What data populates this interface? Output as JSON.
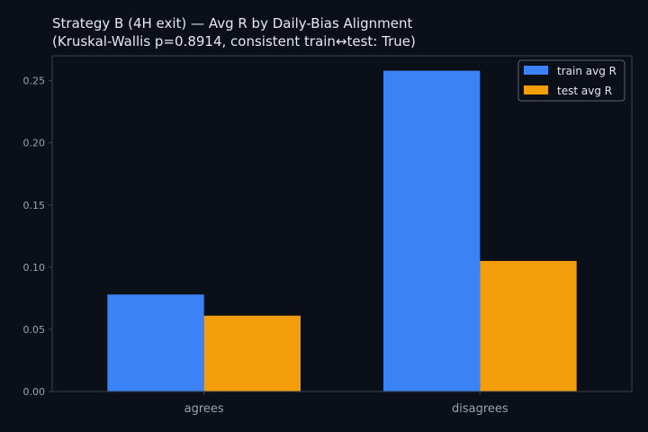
{
  "chart_data": {
    "type": "bar",
    "title_line1": "Strategy B (4H exit) — Avg R by Daily-Bias Alignment",
    "title_line2": "(Kruskal-Wallis p=0.8914, consistent train↔test: True)",
    "categories": [
      "agrees",
      "disagrees"
    ],
    "series": [
      {
        "name": "train avg R",
        "values": [
          0.078,
          0.258
        ],
        "color": "#3b82f6"
      },
      {
        "name": "test avg R",
        "values": [
          0.061,
          0.105
        ],
        "color": "#f59e0b"
      }
    ],
    "xlabel": "",
    "ylabel": "",
    "ylim": [
      0,
      0.27
    ],
    "yticks": [
      "0.00",
      "0.05",
      "0.10",
      "0.15",
      "0.20",
      "0.25"
    ],
    "legend_position": "top-right",
    "grid": false
  },
  "colors": {
    "background": "#0b0f17",
    "axes": "#3a4150",
    "text": "#e6e8ee",
    "tick_text": "#9aa3b2"
  }
}
